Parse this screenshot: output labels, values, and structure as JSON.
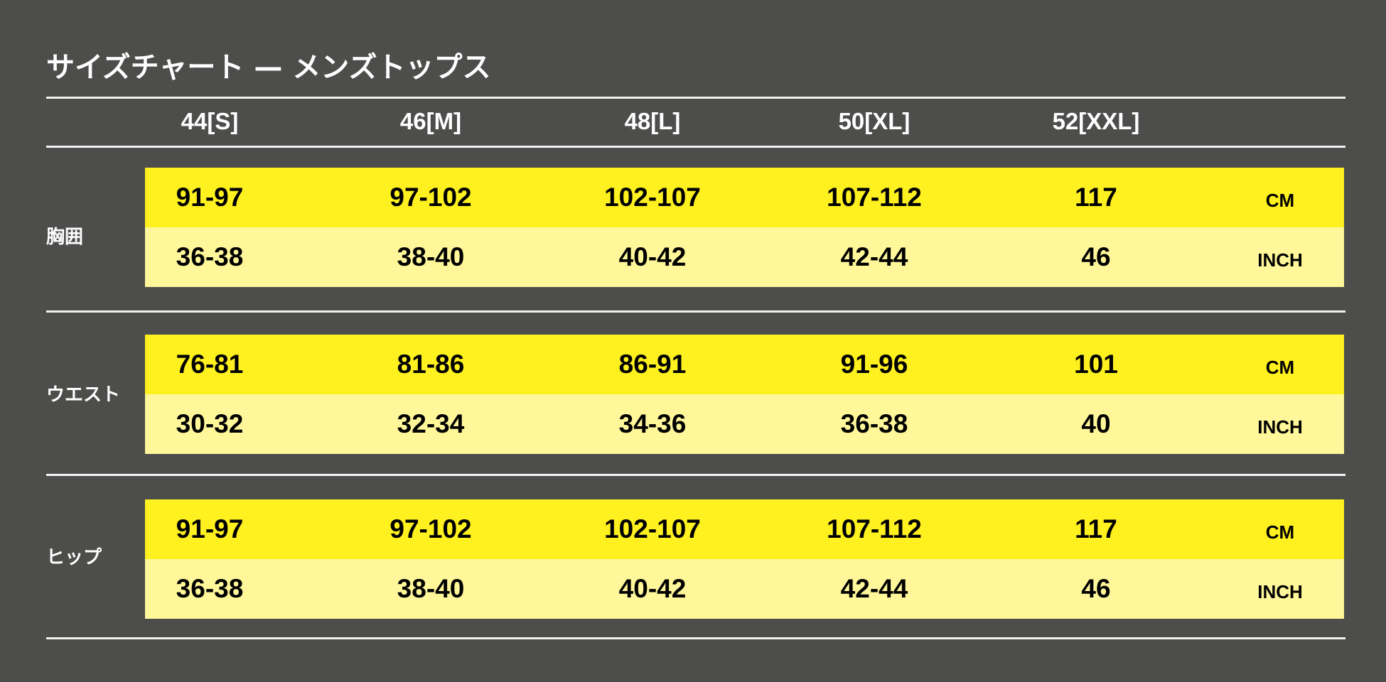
{
  "title": "サイズチャート — メンズトップス",
  "sizes": [
    "44[S]",
    "46[M]",
    "48[L]",
    "50[XL]",
    "52[XXL]"
  ],
  "units": {
    "cm": "CM",
    "inch": "INCH"
  },
  "colors": {
    "background": "#4d4d4b",
    "cm_row": "#fff01f",
    "inch_row": "#fff799"
  },
  "measurements": [
    {
      "label": "胸囲",
      "cm": [
        "91-97",
        "97-102",
        "102-107",
        "107-112",
        "117"
      ],
      "inch": [
        "36-38",
        "38-40",
        "40-42",
        "42-44",
        "46"
      ]
    },
    {
      "label": "ウエスト",
      "cm": [
        "76-81",
        "81-86",
        "86-91",
        "91-96",
        "101"
      ],
      "inch": [
        "30-32",
        "32-34",
        "34-36",
        "36-38",
        "40"
      ]
    },
    {
      "label": "ヒップ",
      "cm": [
        "91-97",
        "97-102",
        "102-107",
        "107-112",
        "117"
      ],
      "inch": [
        "36-38",
        "38-40",
        "40-42",
        "42-44",
        "46"
      ]
    }
  ]
}
